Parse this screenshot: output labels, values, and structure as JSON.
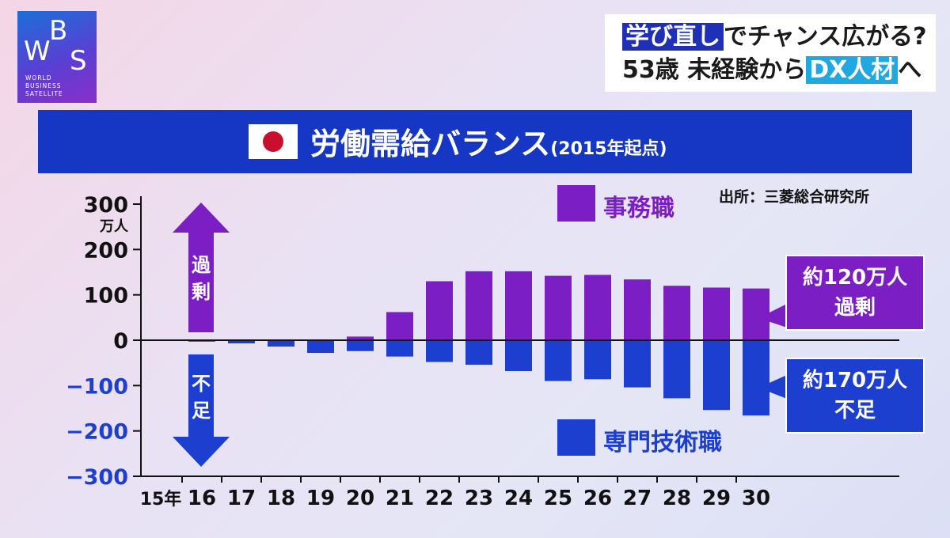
{
  "logo": {
    "letters": [
      "W",
      "B",
      "S"
    ],
    "lines": [
      "WORLD",
      "BUSINESS",
      "SATELLITE"
    ]
  },
  "headline": {
    "line1": [
      {
        "text": "学び直し",
        "style": "dark"
      },
      {
        "text": "でチャンス広がる?",
        "style": "plain"
      }
    ],
    "line2": [
      {
        "text": "53歳 未経験から",
        "style": "plain"
      },
      {
        "text": "DX人材",
        "style": "cyan"
      },
      {
        "text": "へ",
        "style": "plain"
      }
    ]
  },
  "title": {
    "main": "労働需給バランス",
    "sub": "(2015年起点)"
  },
  "source": "出所：三菱総合研究所",
  "arrows": {
    "up": "過剰",
    "down": "不足"
  },
  "callouts": {
    "surplus": [
      "約120万人",
      "過剰"
    ],
    "shortage": [
      "約170万人",
      "不足"
    ]
  },
  "colors": {
    "clerical": "#7b1fc4",
    "technical": "#1c3fd0",
    "title_bar": "#1637c4"
  },
  "chart_data": {
    "type": "bar",
    "categories": [
      "15年",
      "16",
      "17",
      "18",
      "19",
      "20",
      "21",
      "22",
      "23",
      "24",
      "25",
      "26",
      "27",
      "28",
      "29",
      "30"
    ],
    "y_unit": "万人",
    "ylim": [
      -300,
      300
    ],
    "yticks": [
      300,
      200,
      100,
      0,
      -100,
      -200,
      -300
    ],
    "ytick_labels": [
      "300",
      "200",
      "100",
      "0",
      "−100",
      "−200",
      "−300"
    ],
    "series": [
      {
        "name": "事務職",
        "values": [
          0,
          -3,
          -5,
          -12,
          -18,
          8,
          62,
          130,
          152,
          152,
          142,
          144,
          134,
          120,
          116,
          114
        ]
      },
      {
        "name": "専門技術職",
        "values": [
          0,
          -3,
          -7,
          -14,
          -28,
          -24,
          -36,
          -48,
          -54,
          -68,
          -90,
          -86,
          -104,
          -128,
          -154,
          -166
        ]
      }
    ],
    "legend_placement": "inside-top and inside-bottom"
  }
}
